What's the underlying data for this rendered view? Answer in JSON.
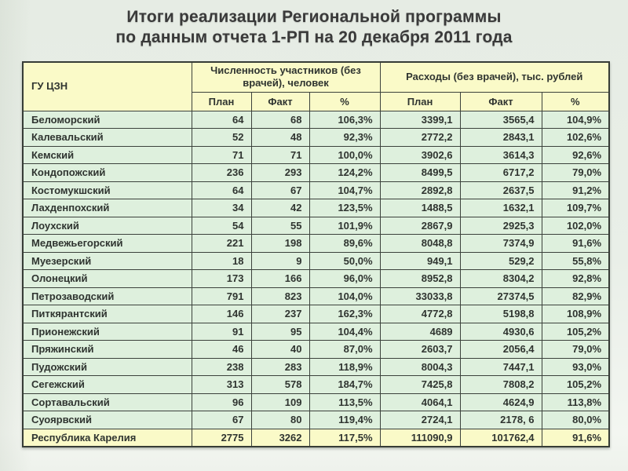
{
  "title": {
    "line1": "Итоги реализации Региональной программы",
    "line2": "по данным отчета 1-РП на 20 декабря 2011 года"
  },
  "colors": {
    "header_fill": "#fafac8",
    "row_fill": "#def0dd",
    "total_row_fill": "#fafac8",
    "border": "#3c423c",
    "title_text": "#3a3a3a",
    "background": "#e9efe8"
  },
  "table": {
    "corner_header": "ГУ ЦЗН",
    "group_headers": [
      {
        "label": "Численность участников (без врачей), человек"
      },
      {
        "label": "Расходы (без врачей), тыс. рублей"
      }
    ],
    "sub_headers": [
      "План",
      "Факт",
      "%",
      "План",
      "Факт",
      "%"
    ],
    "rows": [
      {
        "name": "Беломорский",
        "values": [
          "64",
          "68",
          "106,3%",
          "3399,1",
          "3565,4",
          "104,9%"
        ]
      },
      {
        "name": "Калевальский",
        "values": [
          "52",
          "48",
          "92,3%",
          "2772,2",
          "2843,1",
          "102,6%"
        ]
      },
      {
        "name": "Кемский",
        "values": [
          "71",
          "71",
          "100,0%",
          "3902,6",
          "3614,3",
          "92,6%"
        ]
      },
      {
        "name": "Кондопожский",
        "values": [
          "236",
          "293",
          "124,2%",
          "8499,5",
          "6717,2",
          "79,0%"
        ]
      },
      {
        "name": "Костомукшский",
        "values": [
          "64",
          "67",
          "104,7%",
          "2892,8",
          "2637,5",
          "91,2%"
        ]
      },
      {
        "name": "Лахденпохский",
        "values": [
          "34",
          "42",
          "123,5%",
          "1488,5",
          "1632,1",
          "109,7%"
        ]
      },
      {
        "name": "Лоухский",
        "values": [
          "54",
          "55",
          "101,9%",
          "2867,9",
          "2925,3",
          "102,0%"
        ]
      },
      {
        "name": "Медвежьегорский",
        "values": [
          "221",
          "198",
          "89,6%",
          "8048,8",
          "7374,9",
          "91,6%"
        ]
      },
      {
        "name": "Муезерский",
        "values": [
          "18",
          "9",
          "50,0%",
          "949,1",
          "529,2",
          "55,8%"
        ]
      },
      {
        "name": "Олонецкий",
        "values": [
          "173",
          "166",
          "96,0%",
          "8952,8",
          "8304,2",
          "92,8%"
        ]
      },
      {
        "name": "Петрозаводский",
        "values": [
          "791",
          "823",
          "104,0%",
          "33033,8",
          "27374,5",
          "82,9%"
        ]
      },
      {
        "name": "Питкярантский",
        "values": [
          "146",
          "237",
          "162,3%",
          "4772,8",
          "5198,8",
          "108,9%"
        ]
      },
      {
        "name": "Прионежский",
        "values": [
          "91",
          "95",
          "104,4%",
          "4689",
          "4930,6",
          "105,2%"
        ]
      },
      {
        "name": "Пряжинский",
        "values": [
          "46",
          "40",
          "87,0%",
          "2603,7",
          "2056,4",
          "79,0%"
        ]
      },
      {
        "name": "Пудожский",
        "values": [
          "238",
          "283",
          "118,9%",
          "8004,3",
          "7447,1",
          "93,0%"
        ]
      },
      {
        "name": "Сегежский",
        "values": [
          "313",
          "578",
          "184,7%",
          "7425,8",
          "7808,2",
          "105,2%"
        ]
      },
      {
        "name": "Сортавальский",
        "values": [
          "96",
          "109",
          "113,5%",
          "4064,1",
          "4624,9",
          "113,8%"
        ]
      },
      {
        "name": "Суоярвский",
        "values": [
          "67",
          "80",
          "119,4%",
          "2724,1",
          "2178, 6",
          "80,0%"
        ]
      },
      {
        "name": "Республика Карелия",
        "values": [
          "2775",
          "3262",
          "117,5%",
          "111090,9",
          "101762,4",
          "91,6%"
        ],
        "is_total": true
      }
    ]
  }
}
